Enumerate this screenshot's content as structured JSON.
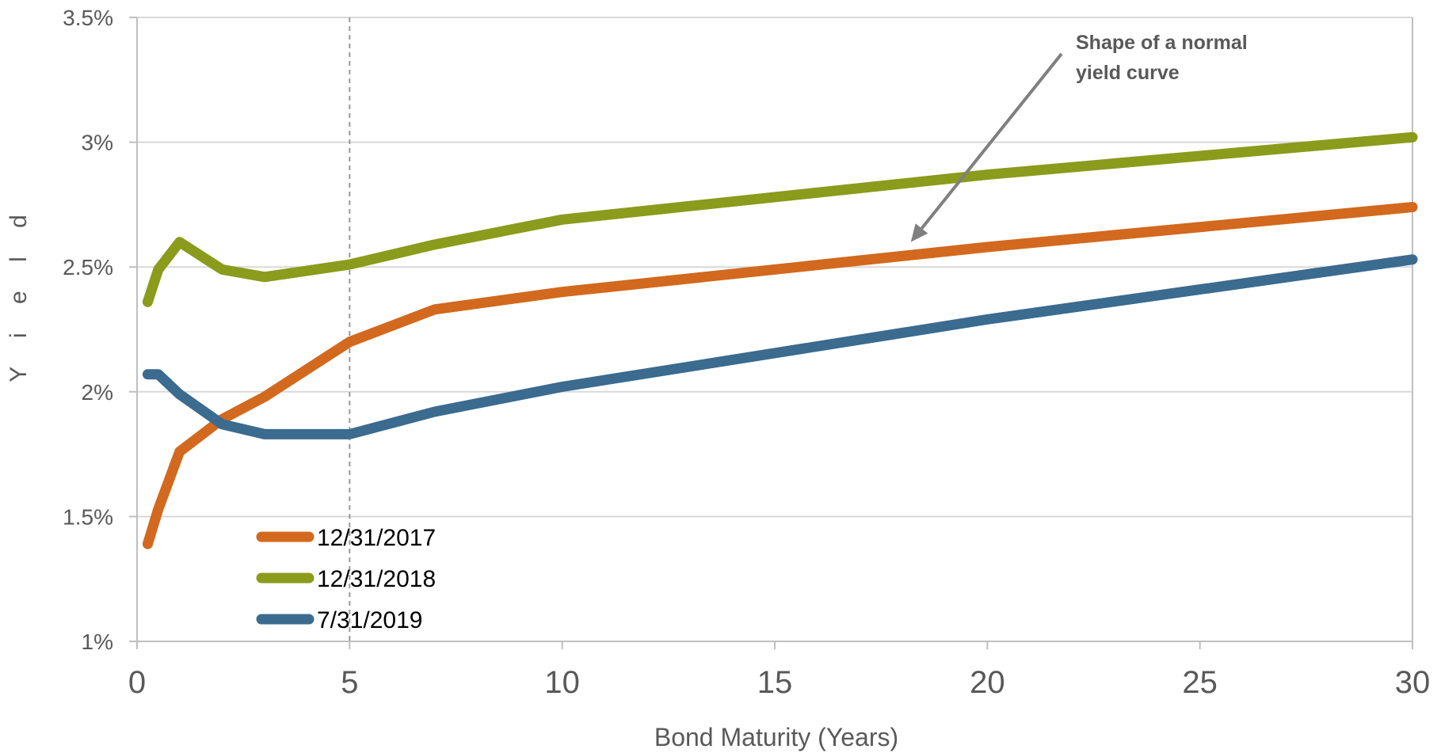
{
  "chart_data": {
    "type": "line",
    "title": "",
    "xlabel": "Bond Maturity (Years)",
    "ylabel": "Y i e l d",
    "xlim": [
      0,
      30
    ],
    "ylim": [
      1.0,
      3.5
    ],
    "x_ticks": [
      0,
      5,
      10,
      15,
      20,
      25,
      30
    ],
    "x_tick_labels": [
      "0",
      "5",
      "10",
      "15",
      "20",
      "25",
      "30"
    ],
    "y_ticks": [
      1.0,
      1.5,
      2.0,
      2.5,
      3.0,
      3.5
    ],
    "y_tick_labels": [
      "1%",
      "1.5%",
      "2%",
      "2.5%",
      "3%",
      "3.5%"
    ],
    "grid": "horizontal",
    "legend_position": "lower-left",
    "reference_line_x": 5,
    "series": [
      {
        "name": "12/31/2017",
        "color": "#D2691E",
        "x": [
          0.25,
          0.5,
          1,
          2,
          3,
          5,
          7,
          10,
          20,
          30
        ],
        "y": [
          1.39,
          1.53,
          1.76,
          1.89,
          1.98,
          2.2,
          2.33,
          2.4,
          2.58,
          2.74
        ]
      },
      {
        "name": "12/31/2018",
        "color": "#8B9B1C",
        "x": [
          0.25,
          0.5,
          1,
          2,
          3,
          5,
          7,
          10,
          20,
          30
        ],
        "y": [
          2.36,
          2.49,
          2.6,
          2.49,
          2.46,
          2.51,
          2.59,
          2.69,
          2.87,
          3.02
        ]
      },
      {
        "name": "7/31/2019",
        "color": "#3B6B8F",
        "x": [
          0.25,
          0.5,
          1,
          2,
          3,
          5,
          7,
          10,
          20,
          30
        ],
        "y": [
          2.07,
          2.07,
          1.99,
          1.87,
          1.83,
          1.83,
          1.92,
          2.02,
          2.29,
          2.53
        ]
      }
    ],
    "annotations": [
      {
        "text_lines": [
          "Shape of a normal",
          "yield curve"
        ],
        "color": "#808080",
        "arrow_target": {
          "x": 18.2,
          "y": 2.6
        }
      }
    ]
  }
}
